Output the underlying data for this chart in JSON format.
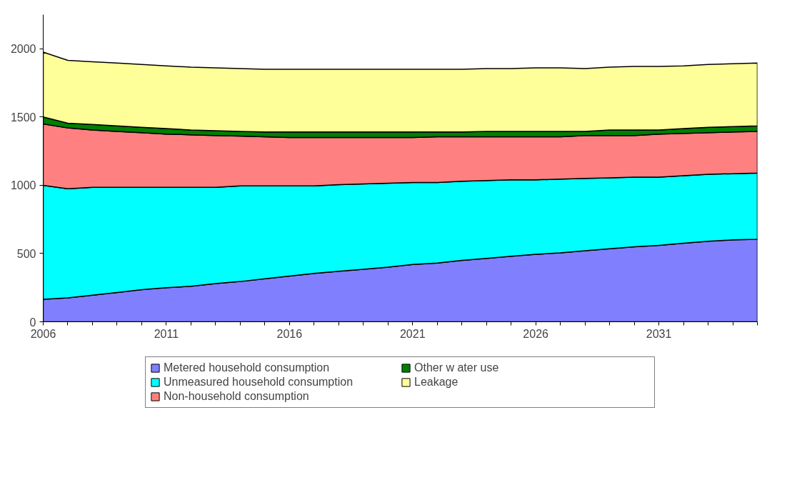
{
  "chart_data": {
    "type": "area",
    "stacked": true,
    "x": [
      2006,
      2007,
      2008,
      2009,
      2010,
      2011,
      2012,
      2013,
      2014,
      2015,
      2016,
      2017,
      2018,
      2019,
      2020,
      2021,
      2022,
      2023,
      2024,
      2025,
      2026,
      2027,
      2028,
      2029,
      2030,
      2031,
      2032,
      2033,
      2034,
      2035
    ],
    "series": [
      {
        "name": "Metered household consumption",
        "color": "#8080ff",
        "values": [
          165,
          175,
          195,
          215,
          235,
          250,
          260,
          280,
          295,
          315,
          335,
          355,
          370,
          385,
          400,
          420,
          430,
          450,
          465,
          480,
          495,
          505,
          520,
          535,
          550,
          560,
          575,
          590,
          600,
          605
        ]
      },
      {
        "name": "Unmeasured household consumption",
        "color": "#00ffff",
        "values": [
          835,
          800,
          790,
          770,
          750,
          735,
          725,
          705,
          700,
          680,
          660,
          640,
          635,
          625,
          615,
          600,
          590,
          580,
          570,
          560,
          545,
          540,
          530,
          520,
          510,
          500,
          495,
          490,
          485,
          485
        ]
      },
      {
        "name": "Non-household consumption",
        "color": "#ff8080",
        "values": [
          450,
          445,
          420,
          410,
          400,
          390,
          385,
          380,
          365,
          360,
          355,
          355,
          345,
          340,
          335,
          330,
          335,
          325,
          320,
          315,
          315,
          310,
          315,
          310,
          305,
          315,
          310,
          305,
          305,
          305
        ]
      },
      {
        "name": "Other w ater use",
        "color": "#008000",
        "values": [
          50,
          35,
          40,
          40,
          40,
          40,
          35,
          35,
          35,
          35,
          40,
          40,
          40,
          40,
          40,
          40,
          35,
          35,
          40,
          40,
          40,
          40,
          30,
          40,
          40,
          30,
          35,
          40,
          40,
          40
        ]
      },
      {
        "name": "Leakage",
        "color": "#ffff99",
        "values": [
          475,
          460,
          460,
          460,
          460,
          460,
          460,
          460,
          460,
          460,
          460,
          460,
          460,
          460,
          460,
          460,
          460,
          460,
          460,
          460,
          465,
          465,
          460,
          460,
          465,
          465,
          460,
          460,
          460,
          460
        ]
      }
    ],
    "xlim": [
      2006,
      2035
    ],
    "ylim": [
      0,
      2250
    ],
    "xticks": [
      2006,
      {
        "value": 2007,
        "label": null
      },
      {
        "value": 2008,
        "label": null
      },
      {
        "value": 2009,
        "label": null
      },
      {
        "value": 2010,
        "label": null
      },
      2011,
      {
        "value": 2012,
        "label": null
      },
      {
        "value": 2013,
        "label": null
      },
      {
        "value": 2014,
        "label": null
      },
      {
        "value": 2015,
        "label": null
      },
      2016,
      {
        "value": 2017,
        "label": null
      },
      {
        "value": 2018,
        "label": null
      },
      {
        "value": 2019,
        "label": null
      },
      {
        "value": 2020,
        "label": null
      },
      2021,
      {
        "value": 2022,
        "label": null
      },
      {
        "value": 2023,
        "label": null
      },
      {
        "value": 2024,
        "label": null
      },
      {
        "value": 2025,
        "label": null
      },
      2026,
      {
        "value": 2027,
        "label": null
      },
      {
        "value": 2028,
        "label": null
      },
      {
        "value": 2029,
        "label": null
      },
      {
        "value": 2030,
        "label": null
      },
      2031,
      {
        "value": 2032,
        "label": null
      },
      {
        "value": 2033,
        "label": null
      },
      {
        "value": 2034,
        "label": null
      },
      {
        "value": 2035,
        "label": null
      }
    ],
    "yticks": [
      0,
      500,
      1000,
      1500,
      2000
    ],
    "grid": false,
    "legend": "bottom"
  }
}
